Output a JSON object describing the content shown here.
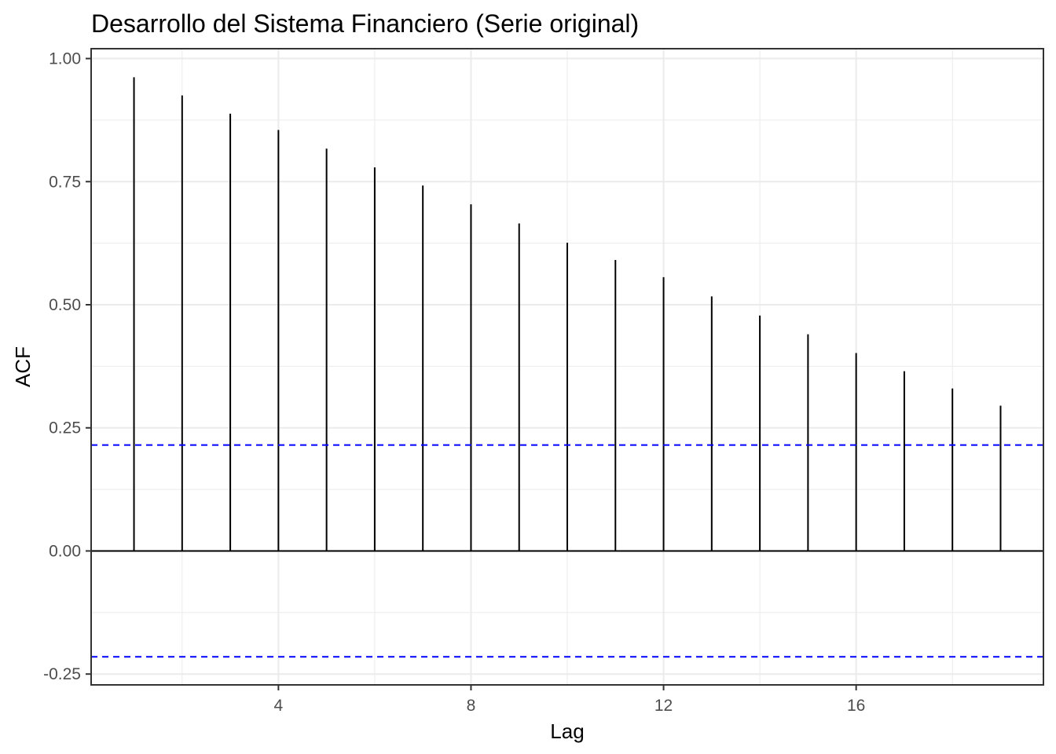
{
  "chart_data": {
    "type": "bar",
    "title": "Desarrollo del Sistema Financiero (Serie original)",
    "xlabel": "Lag",
    "ylabel": "ACF",
    "x": [
      1,
      2,
      3,
      4,
      5,
      6,
      7,
      8,
      9,
      10,
      11,
      12,
      13,
      14,
      15,
      16,
      17,
      18,
      19
    ],
    "values": [
      0.962,
      0.925,
      0.888,
      0.855,
      0.817,
      0.779,
      0.742,
      0.704,
      0.665,
      0.626,
      0.591,
      0.556,
      0.517,
      0.478,
      0.44,
      0.402,
      0.365,
      0.33,
      0.295
    ],
    "xlim": [
      0.11,
      19.89
    ],
    "ylim": [
      -0.272,
      1.02
    ],
    "x_ticks": [
      4,
      8,
      12,
      16
    ],
    "y_ticks": [
      -0.25,
      0,
      0.25,
      0.5,
      0.75,
      1.0
    ],
    "x_tick_labels": [
      "4",
      "8",
      "12",
      "16"
    ],
    "y_tick_labels": [
      "-0.25",
      "0.00",
      "0.25",
      "0.50",
      "0.75",
      "1.00"
    ],
    "confidence_bound": 0.215,
    "grid": true,
    "colors": {
      "bars": "#000000",
      "confidence": "#0000ff",
      "grid": "#ebebeb",
      "panel_border": "#333333"
    }
  }
}
